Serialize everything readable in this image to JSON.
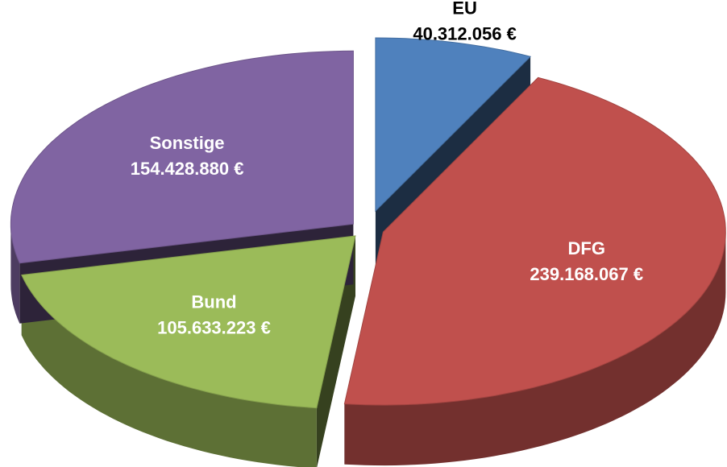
{
  "chart_data": {
    "type": "pie",
    "categories": [
      "EU",
      "DFG",
      "Bund",
      "Sonstige"
    ],
    "values": [
      40312056,
      239168067,
      105633223,
      154428880
    ],
    "value_labels": [
      "40.312.056 €",
      "239.168.067 €",
      "105.633.223 €",
      "154.428.880 €"
    ],
    "colors": [
      "#4f81bd",
      "#c0504d",
      "#9bbb59",
      "#8064a2"
    ]
  }
}
